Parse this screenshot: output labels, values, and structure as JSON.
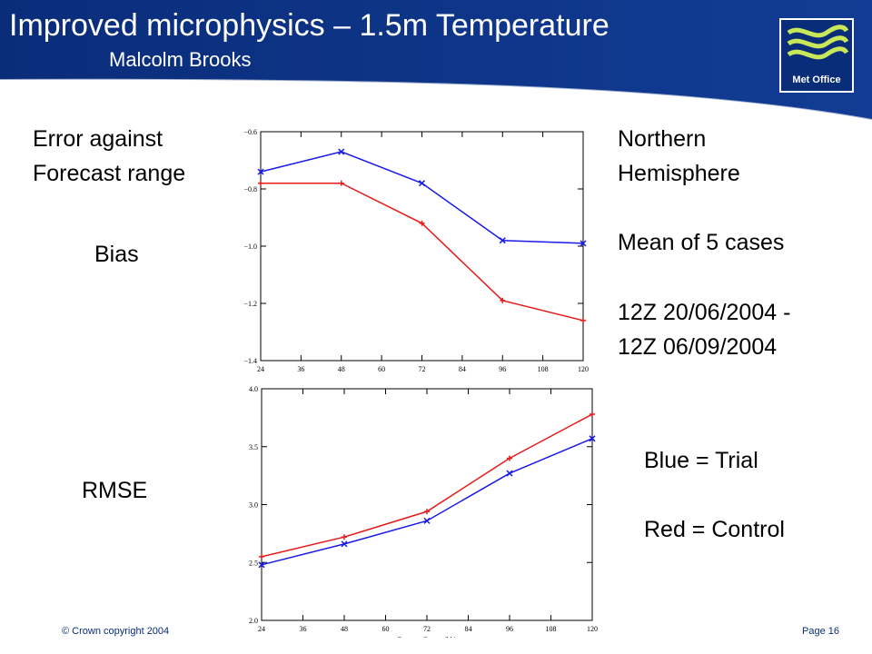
{
  "header": {
    "title": "Improved microphysics – 1.5m Temperature",
    "subtitle": "Malcolm Brooks",
    "logo_text": "Met Office",
    "bg_color": "#0a2d7a",
    "logo_wave_color": "#c8e85a"
  },
  "left": {
    "heading_line1": "Error against",
    "heading_line2": "Forecast range",
    "bias_label": "Bias",
    "rmse_label": "RMSE"
  },
  "right": {
    "line1": "Northern",
    "line2": "Hemisphere",
    "line3": "Mean of 5 cases",
    "line4": "12Z 20/06/2004 -",
    "line5": "12Z 06/09/2004",
    "legend_blue": "Blue = Trial",
    "legend_red": "Red = Control"
  },
  "footer": {
    "copyright": "© Crown copyright 2004",
    "page": "Page 16"
  },
  "chart_data": [
    {
      "type": "line",
      "xlabel": "",
      "ylabel": "",
      "x_ticks": [
        24,
        36,
        48,
        60,
        72,
        84,
        96,
        108,
        120
      ],
      "y_ticks": [
        -0.6,
        -0.8,
        -1.0,
        -1.2,
        -1.4
      ],
      "y_tick_labels": [
        "−0.6",
        "−0.8",
        "−1.0",
        "−1.2",
        "−1.4"
      ],
      "xlim": [
        24,
        120
      ],
      "ylim": [
        -1.4,
        -0.6
      ],
      "grid": false,
      "series": [
        {
          "name": "Trial",
          "color": "#1a1ae6",
          "marker": "x",
          "x": [
            24,
            48,
            72,
            96,
            120
          ],
          "y": [
            -0.74,
            -0.67,
            -0.78,
            -0.98,
            -0.99
          ]
        },
        {
          "name": "Control",
          "color": "#e61a1a",
          "marker": "+",
          "x": [
            24,
            48,
            72,
            96,
            120
          ],
          "y": [
            -0.78,
            -0.78,
            -0.92,
            -1.19,
            -1.26
          ]
        }
      ]
    },
    {
      "type": "line",
      "xlabel": "Forecast Range (hh)",
      "ylabel": "",
      "x_ticks": [
        24,
        36,
        48,
        60,
        72,
        84,
        96,
        108,
        120
      ],
      "y_ticks": [
        2.0,
        2.5,
        3.0,
        3.5,
        4.0
      ],
      "y_tick_labels": [
        "2.0",
        "2.5",
        "3.0",
        "3.5",
        "4.0"
      ],
      "xlim": [
        24,
        120
      ],
      "ylim": [
        2.0,
        4.0
      ],
      "grid": false,
      "series": [
        {
          "name": "Trial",
          "color": "#1a1ae6",
          "marker": "x",
          "x": [
            24,
            48,
            72,
            96,
            120
          ],
          "y": [
            2.48,
            2.66,
            2.86,
            3.27,
            3.57
          ]
        },
        {
          "name": "Control",
          "color": "#e61a1a",
          "marker": "+",
          "x": [
            24,
            48,
            72,
            96,
            120
          ],
          "y": [
            2.55,
            2.72,
            2.94,
            3.4,
            3.78
          ]
        }
      ]
    }
  ]
}
